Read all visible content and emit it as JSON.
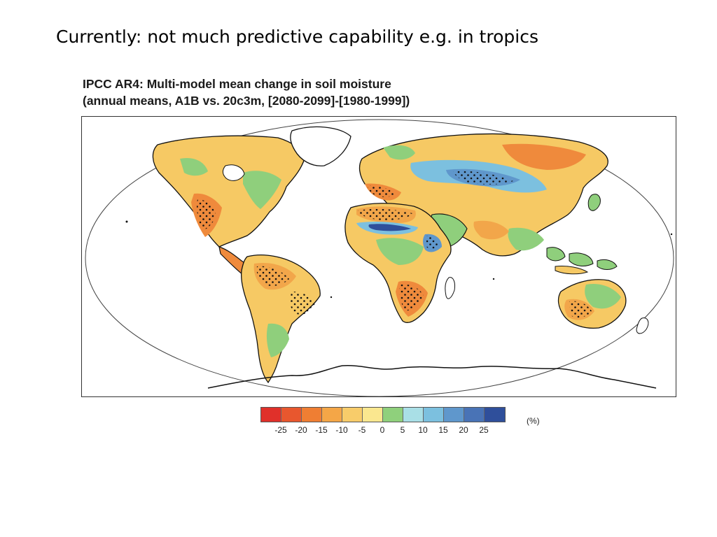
{
  "slide": {
    "title": "Currently: not much predictive capability e.g. in tropics"
  },
  "figure": {
    "title_line1": "IPCC AR4: Multi-model mean change in soil moisture",
    "title_line2": "(annual means, A1B vs. 20c3m, [2080-2099]-[1980-1999])"
  },
  "map": {
    "projection": "robinson",
    "ocean_color": "#ffffff",
    "coastline_color": "#111111",
    "stippling": "dots where models agree"
  },
  "legend": {
    "unit": "(%)",
    "colors": [
      "#e0302a",
      "#e8572e",
      "#ef7e33",
      "#f4a647",
      "#f8cc6a",
      "#fae78f",
      "#8fd07c",
      "#a9dfe6",
      "#7cc0df",
      "#5f97cc",
      "#4973b6",
      "#2f4f9b"
    ],
    "ticks": [
      "-25",
      "-20",
      "-15",
      "-10",
      "-5",
      "0",
      "5",
      "10",
      "15",
      "20",
      "25"
    ]
  }
}
